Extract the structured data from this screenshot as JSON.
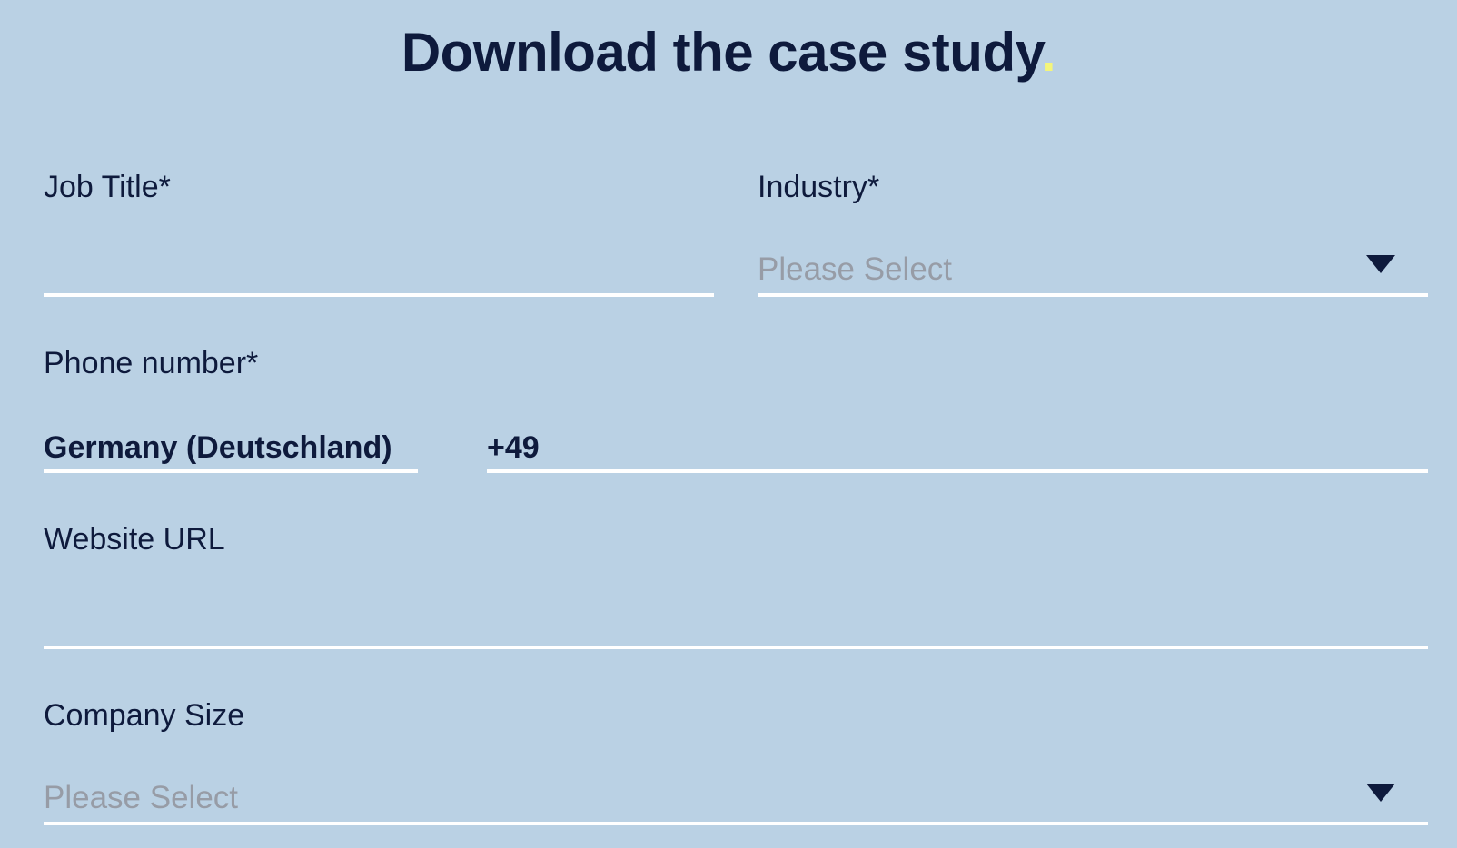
{
  "heading": {
    "text": "Download the case study",
    "dot": "."
  },
  "fields": {
    "job_title": {
      "label": "Job Title*",
      "value": ""
    },
    "industry": {
      "label": "Industry*",
      "placeholder": "Please Select"
    },
    "phone": {
      "label": "Phone number*",
      "country": "Germany (Deutschland)",
      "code": "+49",
      "value": ""
    },
    "website": {
      "label": "Website URL",
      "value": ""
    },
    "company_size": {
      "label": "Company Size",
      "placeholder": "Please Select"
    }
  },
  "icons": {
    "dropdown": "caret-down-icon"
  },
  "colors": {
    "background": "#bad1e4",
    "text": "#0e1a3c",
    "underline": "#ffffff",
    "placeholder": "#979ca6",
    "accent_dot": "#f4f57a"
  }
}
